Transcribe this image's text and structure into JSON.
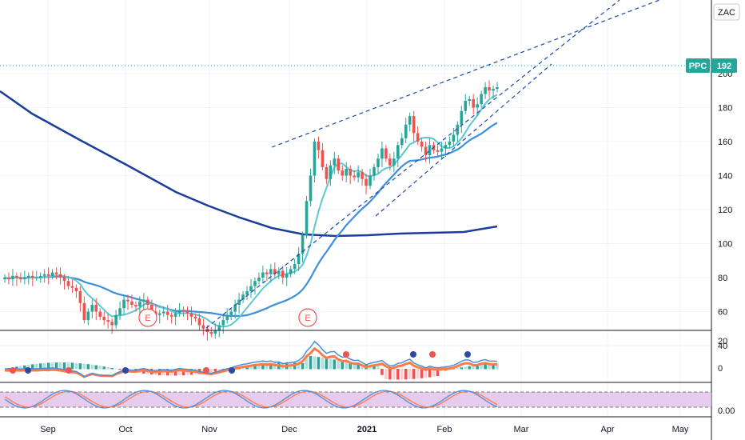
{
  "scale_button": "ZAC",
  "price_label": {
    "symbol": "PPC",
    "value": "192"
  },
  "earnings_label": "E",
  "x_ticks": [
    "Sep",
    "Oct",
    "Nov",
    "Dec",
    "2021",
    "Feb",
    "Mar",
    "Apr",
    "May"
  ],
  "price_ticks": [
    "200",
    "180",
    "160",
    "140",
    "120",
    "100",
    "80",
    "60",
    "40"
  ],
  "macd_ticks": [
    "20",
    "0"
  ],
  "stoch_ticks": [
    "0.00"
  ],
  "colors": {
    "up": "#26a69a",
    "down": "#ef5350",
    "ma_fast": "#5bc8d2",
    "ma_mid": "#3d8fd9",
    "ma_slow": "#1a3e99",
    "trendline": "#1a48b0",
    "last_price": "#26a69a",
    "macd_line": "#4a8fd9",
    "signal_line": "#ff7a45",
    "stoch_band": "#e1bee7"
  },
  "chart_data": [
    {
      "type": "candlestick",
      "x_axis": {
        "ticks": [
          "Sep",
          "Oct",
          "Nov",
          "Dec",
          "2021",
          "Feb",
          "Mar",
          "Apr",
          "May"
        ]
      },
      "y_axis": {
        "range": [
          35,
          215
        ],
        "ticks": [
          40,
          60,
          80,
          100,
          120,
          140,
          160,
          180,
          200
        ]
      },
      "last_price": 192,
      "candles_close": [
        80,
        79,
        81,
        80,
        79,
        80,
        81,
        80,
        80,
        81,
        82,
        81,
        83,
        82,
        80,
        78,
        75,
        74,
        72,
        65,
        55,
        60,
        64,
        60,
        57,
        55,
        54,
        52,
        58,
        62,
        67,
        66,
        64,
        63,
        66,
        67,
        64,
        60,
        58,
        59,
        60,
        58,
        57,
        59,
        61,
        60,
        59,
        57,
        56,
        52,
        50,
        48,
        47,
        49,
        52,
        55,
        58,
        60,
        64,
        67,
        70,
        72,
        75,
        78,
        80,
        83,
        82,
        85,
        82,
        84,
        80,
        82,
        85,
        88,
        94,
        105,
        125,
        140,
        160,
        155,
        145,
        138,
        146,
        150,
        143,
        140,
        144,
        140,
        139,
        142,
        138,
        134,
        140,
        145,
        150,
        156,
        150,
        146,
        150,
        158,
        162,
        170,
        175,
        165,
        160,
        157,
        152,
        158,
        155,
        154,
        156,
        158,
        160,
        164,
        170,
        178,
        184,
        185,
        180,
        182,
        188,
        192,
        190,
        191,
        192
      ],
      "earnings_markers": [
        "E",
        "E"
      ]
    },
    {
      "type": "line",
      "name": "",
      "series": [
        {
          "name": "",
          "role": "ma_fast"
        },
        {
          "name": "",
          "role": "ma_mid"
        },
        {
          "name": "",
          "role": "ma_slow"
        }
      ]
    },
    {
      "type": "macd",
      "y_axis": {
        "ticks": [
          20,
          0
        ]
      }
    },
    {
      "type": "stochastic",
      "y_axis": {
        "ticks": [
          0.0
        ]
      }
    }
  ]
}
